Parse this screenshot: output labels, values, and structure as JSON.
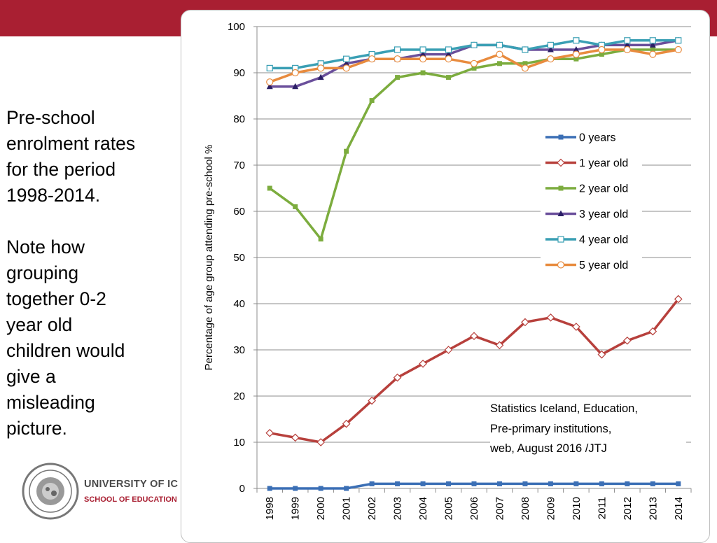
{
  "slide": {
    "heading_lines": [
      "Pre-school",
      "enrolment rates",
      "for the period",
      "1998-2014."
    ],
    "note_lines": [
      "Note how",
      "grouping",
      "together 0-2",
      "year old",
      "children would",
      "give a",
      "misleading",
      "picture."
    ],
    "source_lines": [
      "Statistics Iceland, Education,",
      "Pre-primary institutions,",
      "web, August 2016 /JTJ"
    ],
    "logo_university": "UNIVERSITY OF IC",
    "logo_school": "SCHOOL OF EDUCATION",
    "brand_color": "#a91f32"
  },
  "chart_data": {
    "type": "line",
    "title": "",
    "xlabel": "",
    "ylabel": "Percentage of age group attending pre-school %",
    "ylim": [
      0,
      100
    ],
    "yticks": [
      0,
      10,
      20,
      30,
      40,
      50,
      60,
      70,
      80,
      90,
      100
    ],
    "categories": [
      "1998",
      "1999",
      "2000",
      "2001",
      "2002",
      "2003",
      "2004",
      "2005",
      "2006",
      "2007",
      "2008",
      "2009",
      "2010",
      "2011",
      "2012",
      "2013",
      "2014"
    ],
    "legend_position": "right",
    "series": [
      {
        "name": "0 years",
        "color": "#3b6fb5",
        "marker": "square-filled",
        "values": [
          0,
          0,
          0,
          0,
          1,
          1,
          1,
          1,
          1,
          1,
          1,
          1,
          1,
          1,
          1,
          1,
          1
        ]
      },
      {
        "name": "1 year old",
        "color": "#b7403c",
        "marker": "diamond-open",
        "values": [
          12,
          11,
          10,
          14,
          19,
          24,
          27,
          30,
          33,
          31,
          36,
          37,
          35,
          29,
          32,
          34,
          41
        ]
      },
      {
        "name": "2 year old",
        "color": "#7cac3e",
        "marker": "square-filled",
        "values": [
          65,
          61,
          54,
          73,
          84,
          89,
          90,
          89,
          91,
          92,
          92,
          93,
          93,
          94,
          95,
          95,
          95
        ]
      },
      {
        "name": "3 year old",
        "color": "#6a4f9b",
        "marker": "triangle-filled",
        "values": [
          87,
          87,
          89,
          92,
          93,
          93,
          94,
          94,
          96,
          96,
          95,
          95,
          95,
          96,
          96,
          96,
          97
        ]
      },
      {
        "name": "4 year old",
        "color": "#3a9fb4",
        "marker": "square-open",
        "values": [
          91,
          91,
          92,
          93,
          94,
          95,
          95,
          95,
          96,
          96,
          95,
          96,
          97,
          96,
          97,
          97,
          97
        ]
      },
      {
        "name": "5 year old",
        "color": "#e88b3e",
        "marker": "circle-open",
        "values": [
          88,
          90,
          91,
          91,
          93,
          93,
          93,
          93,
          92,
          94,
          91,
          93,
          94,
          95,
          95,
          94,
          95
        ]
      }
    ]
  }
}
